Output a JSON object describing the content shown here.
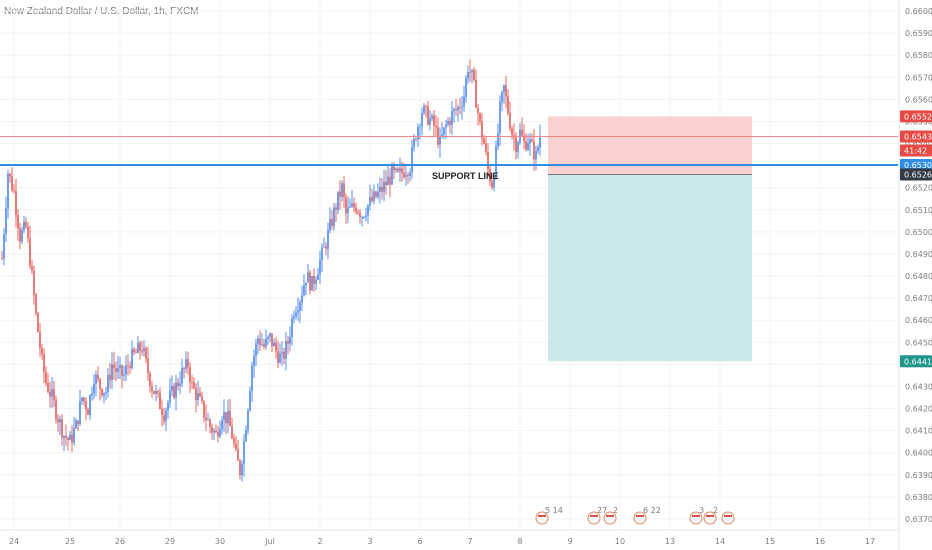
{
  "header": {
    "title": "New Zealand Dollar / U.S. Dollar, 1h, FXCM"
  },
  "colors": {
    "up": "#2f74e8",
    "down": "#e0423d",
    "support": "#2f8de4",
    "price_line": "#f08a8a",
    "stop_zone": "#f9d1d0",
    "target_zone": "#cbe9e6",
    "badge_red": "#e64a44",
    "badge_blue": "#2f8de4",
    "badge_dark": "#333a44",
    "badge_green": "#1f968c"
  },
  "chart_data": {
    "type": "candlestick",
    "symbol": "NZDUSD",
    "ylim": [
      0.6365,
      0.6605
    ],
    "y_ticks": [
      "0.66000",
      "0.65900",
      "0.65800",
      "0.65700",
      "0.65600",
      "0.65500",
      "0.65400",
      "0.65300",
      "0.65200",
      "0.65100",
      "0.65000",
      "0.64900",
      "0.64800",
      "0.64700",
      "0.64600",
      "0.64500",
      "0.64400",
      "0.64300",
      "0.64200",
      "0.64100",
      "0.64000",
      "0.63900",
      "0.63800",
      "0.63700"
    ],
    "x_ticks": [
      "24",
      "25",
      "26",
      "29",
      "30",
      "Jul",
      "2",
      "3",
      "6",
      "7",
      "8",
      "9",
      "10",
      "13",
      "14",
      "15",
      "16",
      "17"
    ],
    "x_tick_index": [
      6,
      34,
      59,
      84,
      109,
      134,
      159,
      184,
      209,
      234,
      259,
      284,
      309,
      334,
      359,
      384,
      409,
      434
    ],
    "close_path": [
      [
        0,
        0.6488
      ],
      [
        3,
        0.6527
      ],
      [
        6,
        0.6518
      ],
      [
        9,
        0.6498
      ],
      [
        12,
        0.6502
      ],
      [
        14,
        0.6488
      ],
      [
        17,
        0.6462
      ],
      [
        20,
        0.6441
      ],
      [
        22,
        0.6432
      ],
      [
        25,
        0.6425
      ],
      [
        28,
        0.6416
      ],
      [
        31,
        0.6408
      ],
      [
        34,
        0.6405
      ],
      [
        37,
        0.6412
      ],
      [
        40,
        0.6425
      ],
      [
        43,
        0.642
      ],
      [
        46,
        0.6435
      ],
      [
        49,
        0.643
      ],
      [
        52,
        0.6428
      ],
      [
        55,
        0.644
      ],
      [
        58,
        0.6436
      ],
      [
        61,
        0.6435
      ],
      [
        64,
        0.6442
      ],
      [
        67,
        0.6445
      ],
      [
        70,
        0.6448
      ],
      [
        72,
        0.644
      ],
      [
        75,
        0.643
      ],
      [
        78,
        0.6424
      ],
      [
        81,
        0.6418
      ],
      [
        84,
        0.6425
      ],
      [
        87,
        0.643
      ],
      [
        90,
        0.6436
      ],
      [
        93,
        0.644
      ],
      [
        95,
        0.643
      ],
      [
        98,
        0.6425
      ],
      [
        101,
        0.6418
      ],
      [
        104,
        0.6412
      ],
      [
        107,
        0.6408
      ],
      [
        110,
        0.6418
      ],
      [
        113,
        0.6415
      ],
      [
        115,
        0.6408
      ],
      [
        117,
        0.6398
      ],
      [
        119,
        0.6392
      ],
      [
        121,
        0.6405
      ],
      [
        123,
        0.6422
      ],
      [
        125,
        0.644
      ],
      [
        128,
        0.6452
      ],
      [
        131,
        0.6448
      ],
      [
        134,
        0.6452
      ],
      [
        137,
        0.6446
      ],
      [
        140,
        0.6442
      ],
      [
        143,
        0.645
      ],
      [
        146,
        0.6465
      ],
      [
        149,
        0.647
      ],
      [
        152,
        0.648
      ],
      [
        155,
        0.6476
      ],
      [
        158,
        0.6484
      ],
      [
        161,
        0.6492
      ],
      [
        164,
        0.6502
      ],
      [
        167,
        0.6512
      ],
      [
        170,
        0.652
      ],
      [
        172,
        0.6508
      ],
      [
        174,
        0.651
      ],
      [
        177,
        0.6512
      ],
      [
        180,
        0.6508
      ],
      [
        183,
        0.6512
      ],
      [
        186,
        0.6515
      ],
      [
        189,
        0.6518
      ],
      [
        192,
        0.6522
      ],
      [
        195,
        0.6526
      ],
      [
        198,
        0.6525
      ],
      [
        201,
        0.6528
      ],
      [
        204,
        0.653
      ],
      [
        207,
        0.6545
      ],
      [
        210,
        0.6555
      ],
      [
        213,
        0.6552
      ],
      [
        216,
        0.6548
      ],
      [
        219,
        0.654
      ],
      [
        222,
        0.6548
      ],
      [
        225,
        0.6553
      ],
      [
        228,
        0.6556
      ],
      [
        231,
        0.6562
      ],
      [
        233,
        0.6575
      ],
      [
        235,
        0.657
      ],
      [
        237,
        0.656
      ],
      [
        239,
        0.6548
      ],
      [
        241,
        0.654
      ],
      [
        243,
        0.6528
      ],
      [
        245,
        0.6522
      ],
      [
        247,
        0.6535
      ],
      [
        249,
        0.6555
      ],
      [
        251,
        0.6565
      ],
      [
        253,
        0.6555
      ],
      [
        255,
        0.6545
      ],
      [
        257,
        0.654
      ],
      [
        259,
        0.6545
      ],
      [
        261,
        0.654
      ],
      [
        263,
        0.6542
      ],
      [
        265,
        0.6538
      ],
      [
        267,
        0.6534
      ],
      [
        269,
        0.6543
      ]
    ],
    "last_price": 0.65432,
    "countdown": "41:42",
    "support_line": 0.65303,
    "support_label": "SUPPORT LINE",
    "position": {
      "type": "short",
      "entry": 0.6526,
      "stop": 0.65523,
      "target": 0.64414,
      "start_index": 273,
      "end_index": 375
    },
    "price_labels": [
      {
        "value": "0.65523",
        "color": "badge_red"
      },
      {
        "value": "0.65432",
        "color": "badge_red"
      },
      {
        "value": "41:42",
        "color": "badge_red"
      },
      {
        "value": "0.65303",
        "color": "badge_blue"
      },
      {
        "value": "0.65260",
        "color": "badge_dark"
      },
      {
        "value": "0.64414",
        "color": "badge_green"
      }
    ],
    "events": [
      {
        "label": "5 14",
        "index": 270
      },
      {
        "label": "27",
        "index": 296
      },
      {
        "label": "2",
        "index": 304
      },
      {
        "label": "6 22",
        "index": 319
      },
      {
        "label": "3",
        "index": 347
      },
      {
        "label": "2",
        "index": 354
      },
      {
        "label": "",
        "index": 363
      }
    ]
  }
}
